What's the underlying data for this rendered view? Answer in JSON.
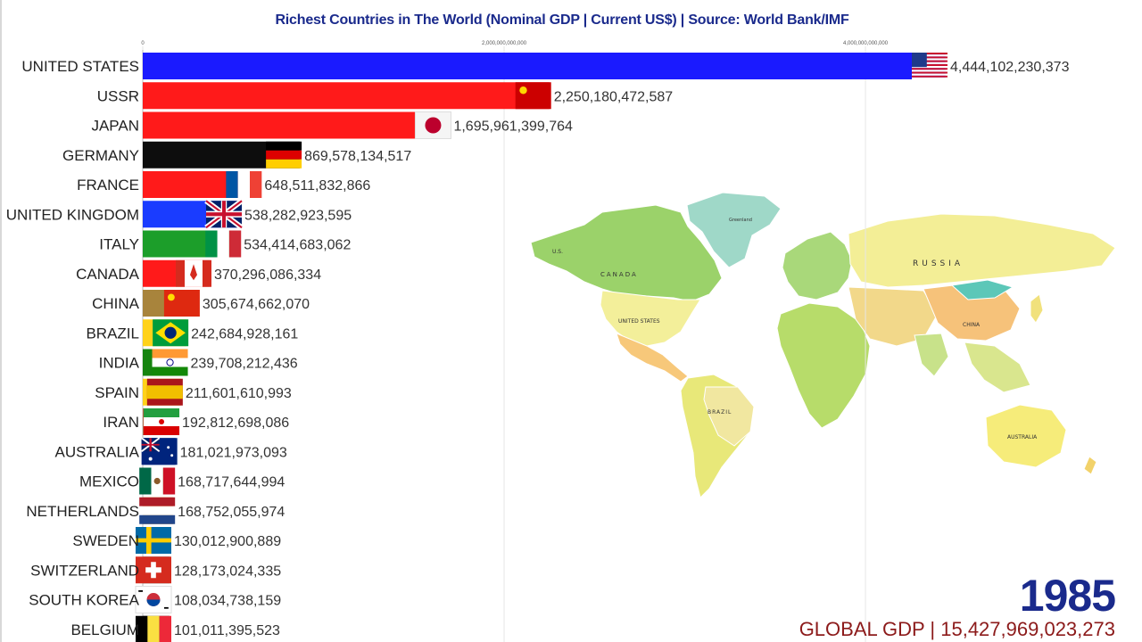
{
  "title": "Richest Countries in The World (Nominal GDP | Current US$) | Source: World Bank/IMF",
  "year": "1985",
  "global_gdp": "GLOBAL GDP | 15,427,969,023,273",
  "chart_data": {
    "type": "bar",
    "orientation": "horizontal",
    "title": "Richest Countries in The World (Nominal GDP | Current US$) | Source: World Bank/IMF",
    "xlim": [
      0,
      4444102230373
    ],
    "x_ticks": [
      {
        "value": 0,
        "label": "0"
      },
      {
        "value": 2000000000000,
        "label": "2,000,000,000,000"
      },
      {
        "value": 4000000000000,
        "label": "4,000,000,000,000"
      }
    ],
    "grid": true,
    "categories": [
      "UNITED STATES",
      "USSR",
      "JAPAN",
      "GERMANY",
      "FRANCE",
      "UNITED KINGDOM",
      "ITALY",
      "CANADA",
      "CHINA",
      "BRAZIL",
      "INDIA",
      "SPAIN",
      "IRAN",
      "AUSTRALIA",
      "MEXICO",
      "NETHERLANDS",
      "SWEDEN",
      "SWITZERLAND",
      "SOUTH KOREA",
      "BELGIUM"
    ],
    "values": [
      4444102230373,
      2250180472587,
      1695961399764,
      869578134517,
      648511832866,
      538282923595,
      534414683062,
      370296086334,
      305674662070,
      242684928161,
      239708212436,
      211601610993,
      192812698086,
      181021973093,
      168717644994,
      168752055974,
      130012900889,
      128173024335,
      108034738159,
      101011395523
    ],
    "value_labels": [
      "4,444,102,230,373",
      "2,250,180,472,587",
      "1,695,961,399,764",
      "869,578,134,517",
      "648,511,832,866",
      "538,282,923,595",
      "534,414,683,062",
      "370,296,086,334",
      "305,674,662,070",
      "242,684,928,161",
      "239,708,212,436",
      "211,601,610,993",
      "192,812,698,086",
      "181,021,973,093",
      "168,717,644,994",
      "168,752,055,974",
      "130,012,900,889",
      "128,173,024,335",
      "108,034,738,159",
      "101,011,395,523"
    ],
    "bar_colors": [
      "#1a1aff",
      "#ff1a1a",
      "#ff1a1a",
      "#0d0d0d",
      "#ff1a1a",
      "#1a3cff",
      "#1c9e2a",
      "#ff1a1a",
      "#a8843c",
      "#ffd21a",
      "#16840f",
      "#ffd21a",
      "#b5694a",
      "#0a1a8c",
      "#2aa52a",
      "#ffa31a",
      "#ffd21a",
      "#2aa59e",
      "#8a1a9e",
      "#111111"
    ],
    "flag_icons": [
      "usa-flag",
      "ussr-flag",
      "japan-flag",
      "germany-flag",
      "france-flag",
      "uk-flag",
      "italy-flag",
      "canada-flag",
      "china-flag",
      "brazil-flag",
      "india-flag",
      "spain-flag",
      "iran-flag",
      "australia-flag",
      "mexico-flag",
      "netherlands-flag",
      "sweden-flag",
      "switzerland-flag",
      "south-korea-flag",
      "belgium-flag"
    ]
  },
  "map": {
    "labels": [
      "CANADA",
      "UNITED STATES",
      "BRAZIL",
      "RUSSIA",
      "CHINA",
      "AUSTRALIA",
      "U.S.",
      "Greenland"
    ]
  },
  "colors": {
    "title": "#1a2a8c",
    "year": "#1a2a8c",
    "global": "#8c1a1a"
  }
}
